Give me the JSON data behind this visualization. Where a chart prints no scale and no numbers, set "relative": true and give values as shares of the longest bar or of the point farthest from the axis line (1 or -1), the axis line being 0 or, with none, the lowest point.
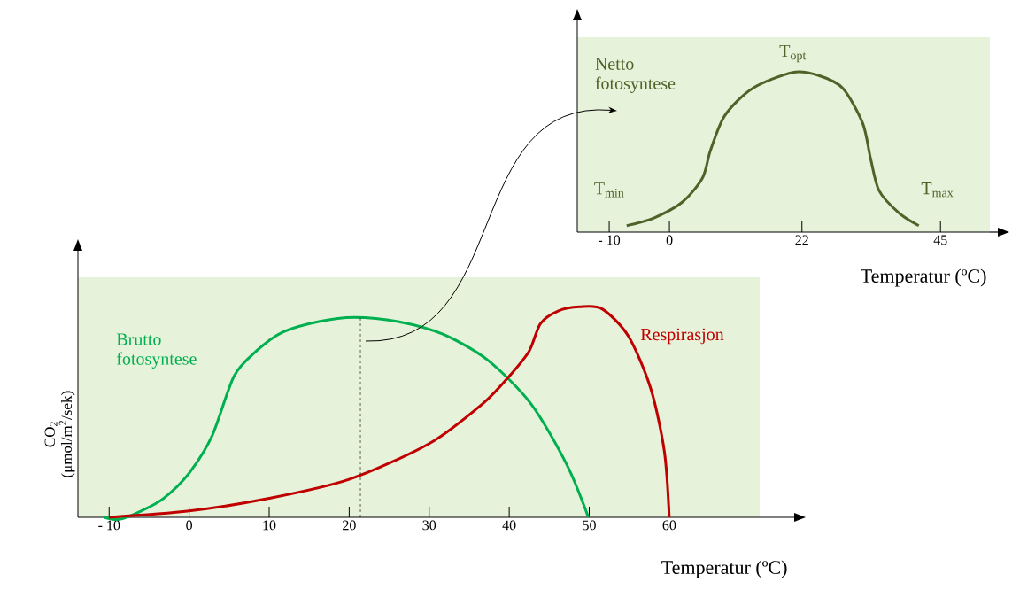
{
  "chart_data": [
    {
      "type": "line",
      "relative": true,
      "xlabel": "Temperatur (ºC)",
      "xlim": [
        -15.3,
        53.2
      ],
      "xticks": [
        {
          "value": -10,
          "label": "- 10"
        },
        0,
        22,
        45
      ],
      "x": [
        -7.1,
        -2.5,
        2.2,
        5.5,
        6.8,
        9.2,
        13.8,
        20.5,
        24.8,
        28.8,
        32.1,
        33.4,
        34.8,
        38.1,
        41.4
      ],
      "series": [
        {
          "name": "Netto fotosyntese",
          "color": "#4f6228",
          "values": [
            0.04,
            0.09,
            0.19,
            0.34,
            0.51,
            0.73,
            0.9,
            1.0,
            0.98,
            0.9,
            0.68,
            0.46,
            0.26,
            0.12,
            0.04
          ]
        }
      ],
      "annotations": [
        "T$_{min}$",
        {
          "text": "T$_{opt}$",
          "x": 20.5,
          "y": 1.0
        },
        "T$_{max}$"
      ]
    },
    {
      "type": "line",
      "relative": true,
      "xlabel": "Temperatur (ºC)",
      "ylabel": "CO$_{2}$ (μmol/m$^{2}$/sek)",
      "xlim": [
        -13.9,
        71.3
      ],
      "xticks": [
        {
          "value": -10,
          "label": "- 10"
        },
        0,
        10,
        20,
        30,
        40,
        50,
        60
      ],
      "series": [
        {
          "name": "Brutto fotosyntese",
          "color": "#00b050",
          "x": [
            -10.6,
            -8.7,
            -6.0,
            -3.2,
            0,
            2.9,
            5.6,
            8.4,
            11.7,
            16.2,
            20.6,
            26.1,
            31.7,
            37.2,
            42.7,
            47.2,
            49.9
          ],
          "values": [
            0.0,
            -0.01,
            0.03,
            0.09,
            0.21,
            0.39,
            0.67,
            0.79,
            0.88,
            0.93,
            0.95,
            0.93,
            0.87,
            0.75,
            0.54,
            0.25,
            0.0
          ]
        },
        {
          "name": "Respirasjon",
          "color": "#c00000",
          "x": [
            -10,
            0,
            10,
            20,
            30,
            36.7,
            40,
            42.5,
            43.9,
            46.1,
            48.8,
            51.6,
            54.9,
            57.7,
            59.4,
            60
          ],
          "values": [
            0.0,
            0.03,
            0.09,
            0.18,
            0.35,
            0.54,
            0.67,
            0.79,
            0.92,
            0.98,
            1.0,
            0.99,
            0.86,
            0.61,
            0.31,
            0.0
          ]
        }
      ],
      "ref_lines": [
        {
          "axis": "x",
          "value": 21.4,
          "line_style": "dashed"
        }
      ]
    }
  ]
}
